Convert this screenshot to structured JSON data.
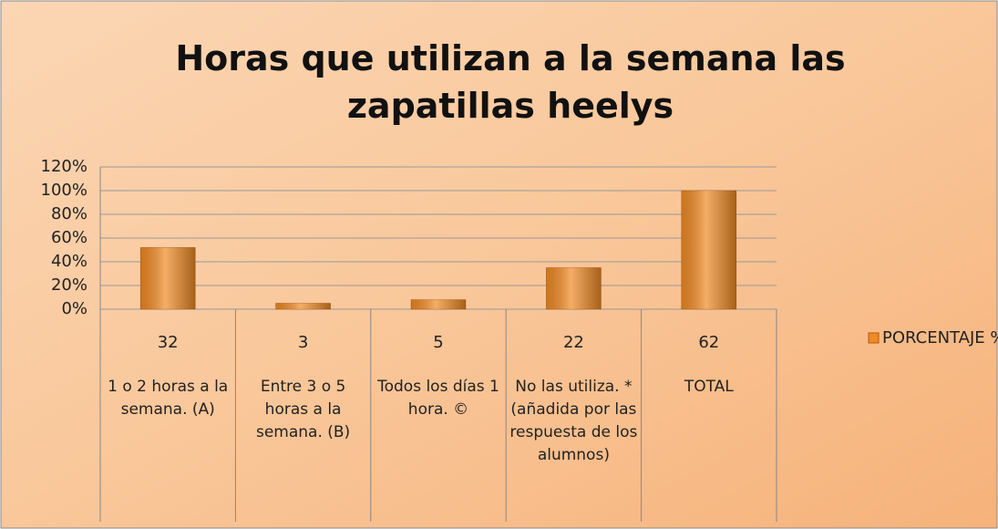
{
  "chart_data": {
    "type": "bar",
    "title": "Horas que utilizan a la semana las zapatillas heelys",
    "counts": [
      32,
      3,
      5,
      22,
      62
    ],
    "categories": [
      "1 o 2 horas a la semana. (A)",
      "Entre 3 o 5 horas a la semana.  (B)",
      "Todos los días 1 hora. ©",
      "No las utiliza. * (añadida por las respuesta de los alumnos)",
      "TOTAL"
    ],
    "series": [
      {
        "name": "PORCENTAJE %",
        "color": "#f08a24",
        "values": [
          52,
          5,
          8,
          35,
          100
        ]
      }
    ],
    "ylim": [
      0,
      120
    ],
    "yticks": [
      {
        "value": 0,
        "label": "0%"
      },
      {
        "value": 20,
        "label": "20%"
      },
      {
        "value": 40,
        "label": "40%"
      },
      {
        "value": 60,
        "label": "60%"
      },
      {
        "value": 80,
        "label": "80%"
      },
      {
        "value": 100,
        "label": "100%"
      },
      {
        "value": 120,
        "label": "120%"
      }
    ],
    "grid": true,
    "legend": "right"
  }
}
